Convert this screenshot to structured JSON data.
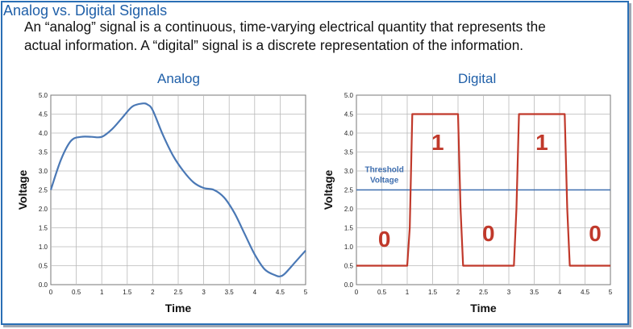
{
  "header": {
    "title": "Analog vs. Digital Signals",
    "line1": "An “analog” signal is a continuous, time-varying electrical quantity that represents the",
    "line2": "actual information.  A “digital” signal is a discrete representation of the information."
  },
  "chart_data": [
    {
      "type": "line",
      "title": "Analog",
      "xlabel": "Time",
      "ylabel": "Voltage",
      "xlim": [
        0,
        5
      ],
      "ylim": [
        0,
        5
      ],
      "xticks": [
        "0",
        "0.5",
        "1",
        "1.5",
        "2",
        "2.5",
        "3",
        "3.5",
        "4",
        "4.5",
        "5"
      ],
      "yticks": [
        "0.0",
        "0.5",
        "1.0",
        "1.5",
        "2.0",
        "2.5",
        "3.0",
        "3.5",
        "4.0",
        "4.5",
        "5.0"
      ],
      "grid": true,
      "color": "#4a78b5",
      "series": [
        {
          "x": [
            0,
            0.2,
            0.4,
            0.6,
            0.8,
            1.0,
            1.2,
            1.4,
            1.6,
            1.8,
            1.9,
            2.0,
            2.2,
            2.4,
            2.6,
            2.8,
            3.0,
            3.2,
            3.4,
            3.6,
            3.8,
            4.0,
            4.2,
            4.4,
            4.5,
            4.6,
            4.8,
            5.0
          ],
          "y": [
            2.5,
            3.3,
            3.8,
            3.9,
            3.9,
            3.9,
            4.1,
            4.4,
            4.7,
            4.78,
            4.75,
            4.6,
            3.95,
            3.4,
            3.0,
            2.7,
            2.55,
            2.5,
            2.3,
            1.9,
            1.35,
            0.8,
            0.4,
            0.25,
            0.22,
            0.3,
            0.6,
            0.9
          ]
        }
      ]
    },
    {
      "type": "line",
      "title": "Digital",
      "xlabel": "Time",
      "ylabel": "Voltage",
      "xlim": [
        0,
        5
      ],
      "ylim": [
        0,
        5
      ],
      "xticks": [
        "0",
        "0.5",
        "1",
        "1.5",
        "2",
        "2.5",
        "3",
        "3.5",
        "4",
        "4.5",
        "5"
      ],
      "yticks": [
        "0.0",
        "0.5",
        "1.0",
        "1.5",
        "2.0",
        "2.5",
        "3.0",
        "3.5",
        "4.0",
        "4.5",
        "5.0"
      ],
      "grid": true,
      "color": "#c0392b",
      "threshold_value": 2.5,
      "threshold_color": "#3f6fb0",
      "threshold_label_line1": "Threshold",
      "threshold_label_line2": "Voltage",
      "series": [
        {
          "x": [
            0,
            1.0,
            1.05,
            1.1,
            1.9,
            2.0,
            2.05,
            2.1,
            3.05,
            3.1,
            3.15,
            3.2,
            4.0,
            4.1,
            4.15,
            4.2,
            5.0
          ],
          "y": [
            0.5,
            0.5,
            1.5,
            4.5,
            4.5,
            4.5,
            2.0,
            0.5,
            0.5,
            0.5,
            2.0,
            4.5,
            4.5,
            4.5,
            2.0,
            0.5,
            0.5
          ]
        }
      ],
      "bits": [
        {
          "label": "0",
          "x": 0.55,
          "y": 1.0
        },
        {
          "label": "1",
          "x": 1.6,
          "y": 3.55
        },
        {
          "label": "0",
          "x": 2.6,
          "y": 1.15
        },
        {
          "label": "1",
          "x": 3.65,
          "y": 3.55
        },
        {
          "label": "0",
          "x": 4.7,
          "y": 1.15
        }
      ]
    }
  ]
}
